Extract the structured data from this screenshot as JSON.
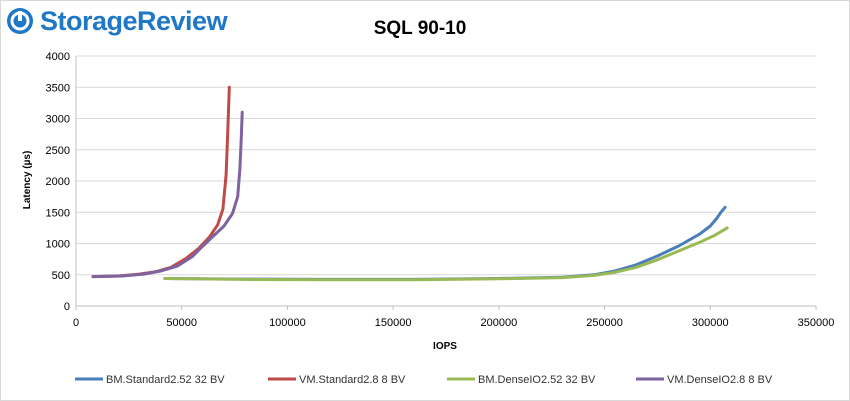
{
  "brand": {
    "name": "StorageReview",
    "logo_icon": "storagereview-logo-icon",
    "colors": {
      "primary": "#1f77c7",
      "dark": "#2e3a46"
    }
  },
  "chart_data": {
    "type": "line",
    "title": "SQL 90-10",
    "xlabel": "IOPS",
    "ylabel": "Latency (µs)",
    "xlim": [
      0,
      350000
    ],
    "ylim": [
      0,
      4000
    ],
    "xticks": [
      0,
      50000,
      100000,
      150000,
      200000,
      250000,
      300000,
      350000
    ],
    "yticks": [
      0,
      500,
      1000,
      1500,
      2000,
      2500,
      3000,
      3500,
      4000
    ],
    "grid": "horizontal",
    "legend_position": "bottom",
    "series": [
      {
        "name": "BM.Standard2.52 32 BV",
        "color": "#4a7ebb",
        "points": [
          [
            42000,
            440
          ],
          [
            80000,
            430
          ],
          [
            120000,
            425
          ],
          [
            160000,
            425
          ],
          [
            200000,
            440
          ],
          [
            230000,
            460
          ],
          [
            245000,
            500
          ],
          [
            255000,
            560
          ],
          [
            265000,
            660
          ],
          [
            275000,
            800
          ],
          [
            285000,
            960
          ],
          [
            295000,
            1150
          ],
          [
            300000,
            1280
          ],
          [
            303000,
            1400
          ],
          [
            305000,
            1500
          ],
          [
            307000,
            1580
          ]
        ]
      },
      {
        "name": "VM.Standard2.8 8 BV",
        "color": "#be4b48",
        "points": [
          [
            8000,
            470
          ],
          [
            20000,
            480
          ],
          [
            30000,
            510
          ],
          [
            38000,
            550
          ],
          [
            45000,
            620
          ],
          [
            52000,
            760
          ],
          [
            58000,
            920
          ],
          [
            63000,
            1100
          ],
          [
            67000,
            1300
          ],
          [
            69500,
            1550
          ],
          [
            71000,
            2100
          ],
          [
            71800,
            2800
          ],
          [
            72500,
            3500
          ]
        ]
      },
      {
        "name": "BM.DenseIO2.52 32 BV",
        "color": "#98b954",
        "points": [
          [
            42000,
            440
          ],
          [
            80000,
            425
          ],
          [
            120000,
            420
          ],
          [
            160000,
            420
          ],
          [
            200000,
            435
          ],
          [
            230000,
            455
          ],
          [
            245000,
            490
          ],
          [
            255000,
            540
          ],
          [
            265000,
            620
          ],
          [
            275000,
            740
          ],
          [
            285000,
            880
          ],
          [
            295000,
            1020
          ],
          [
            302000,
            1130
          ],
          [
            308000,
            1250
          ]
        ]
      },
      {
        "name": "VM.DenseIO2.8 8 BV",
        "color": "#7e63a0",
        "points": [
          [
            8000,
            470
          ],
          [
            22000,
            480
          ],
          [
            32000,
            510
          ],
          [
            40000,
            560
          ],
          [
            48000,
            640
          ],
          [
            55000,
            790
          ],
          [
            60000,
            960
          ],
          [
            65000,
            1120
          ],
          [
            70000,
            1280
          ],
          [
            74000,
            1480
          ],
          [
            76500,
            1750
          ],
          [
            77500,
            2200
          ],
          [
            78200,
            2700
          ],
          [
            78600,
            3100
          ]
        ]
      }
    ]
  }
}
